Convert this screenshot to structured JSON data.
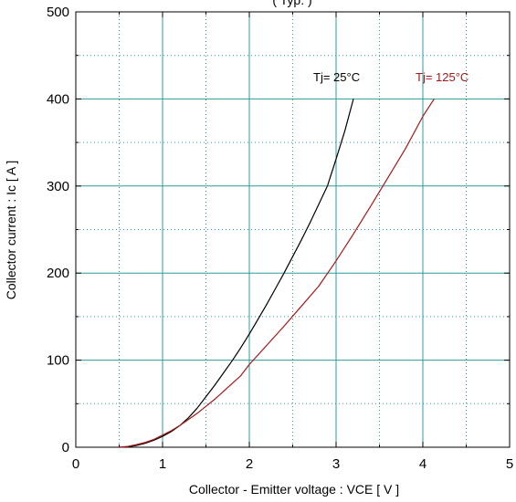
{
  "chart_data": {
    "type": "line",
    "title": "( Typ. )",
    "xlabel": "Collector - Emitter voltage  :  VCE  [ V ]",
    "ylabel": "Collector current  :  Ic  [ A ]",
    "xlim": [
      0,
      5
    ],
    "ylim": [
      0,
      500
    ],
    "x_ticks": [
      0,
      1,
      2,
      3,
      4,
      5
    ],
    "y_ticks": [
      0,
      100,
      200,
      300,
      400,
      500
    ],
    "x_ticks_minor": [
      0.5,
      1.5,
      2.5,
      3.5,
      4.5
    ],
    "y_ticks_minor": [
      50,
      150,
      250,
      350,
      450
    ],
    "grid": true,
    "series": [
      {
        "name": "Tj= 25°C",
        "color": "#000000",
        "x": [
          0.5,
          0.6,
          0.7,
          0.8,
          0.9,
          1.0,
          1.1,
          1.2,
          1.3,
          1.4,
          1.5,
          1.6,
          1.7,
          1.8,
          1.9,
          2.0,
          2.1,
          2.2,
          2.3,
          2.4,
          2.5,
          2.6,
          2.7,
          2.8,
          2.9,
          3.0,
          3.1,
          3.2
        ],
        "y": [
          0,
          0.5,
          2,
          4.5,
          8,
          12.5,
          18,
          25,
          34,
          45,
          58,
          71,
          85,
          99,
          114,
          130,
          147,
          164,
          182,
          200,
          219,
          238,
          258,
          279,
          300,
          331,
          363,
          400
        ]
      },
      {
        "name": "Tj= 125°C",
        "color": "#a31919",
        "x": [
          0.5,
          0.6,
          0.7,
          0.8,
          0.9,
          1.0,
          1.1,
          1.2,
          1.3,
          1.4,
          1.5,
          1.6,
          1.7,
          1.8,
          1.9,
          2.0,
          2.2,
          2.4,
          2.6,
          2.8,
          3.0,
          3.2,
          3.4,
          3.6,
          3.8,
          4.0,
          4.13
        ],
        "y": [
          0,
          1,
          3,
          5.5,
          9,
          14,
          19,
          25,
          32,
          39,
          47,
          55,
          64,
          73,
          82,
          95,
          117,
          139,
          162,
          185,
          214,
          245,
          277,
          310,
          343,
          380,
          400
        ]
      }
    ]
  }
}
